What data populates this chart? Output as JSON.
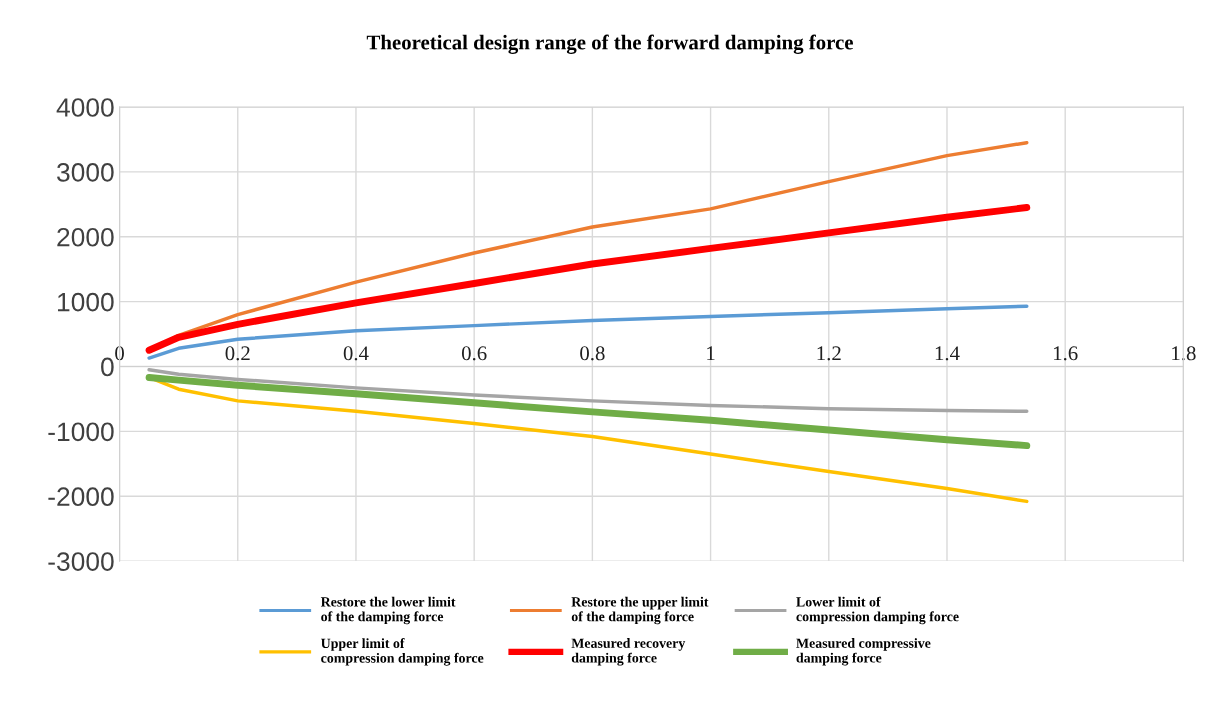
{
  "chart_data": {
    "type": "line",
    "title": "Theoretical design range of the forward damping force",
    "x": [
      0.05,
      0.1,
      0.2,
      0.4,
      0.6,
      0.8,
      1.0,
      1.2,
      1.4,
      1.535
    ],
    "series": [
      {
        "name": "Restore the lower limit of the damping force",
        "color": "#5b9bd5",
        "values": [
          130,
          280,
          420,
          550,
          630,
          710,
          770,
          830,
          890,
          930
        ]
      },
      {
        "name": "Restore the upper limit of the damping force",
        "color": "#ed7d31",
        "values": [
          250,
          480,
          800,
          1300,
          1750,
          2150,
          2430,
          2850,
          3250,
          3450
        ]
      },
      {
        "name": "Lower limit of compression damping force",
        "color": "#a5a5a5",
        "values": [
          -50,
          -120,
          -200,
          -330,
          -440,
          -530,
          -600,
          -650,
          -680,
          -690
        ]
      },
      {
        "name": "Upper limit of compression damping force",
        "color": "#ffc000",
        "values": [
          -170,
          -350,
          -530,
          -690,
          -880,
          -1080,
          -1350,
          -1620,
          -1880,
          -2080
        ]
      },
      {
        "name": "Measured recovery damping force",
        "color": "#ff0000",
        "values": [
          250,
          450,
          650,
          980,
          1280,
          1580,
          1820,
          2060,
          2300,
          2450
        ]
      },
      {
        "name": "Measured compressive damping force",
        "color": "#70ad47",
        "values": [
          -170,
          -210,
          -290,
          -420,
          -560,
          -700,
          -830,
          -980,
          -1130,
          -1220
        ]
      }
    ],
    "xlim": [
      0,
      1.8
    ],
    "xticks": [
      0,
      0.2,
      0.4,
      0.6,
      0.8,
      1,
      1.2,
      1.4,
      1.6,
      1.8
    ],
    "ylim": [
      -3000,
      4000
    ],
    "yticks": [
      -3000,
      -2000,
      -1000,
      0,
      1000,
      2000,
      3000,
      4000
    ],
    "grid": true,
    "legend": "bottom",
    "marker": "none",
    "line_style": "solid"
  }
}
